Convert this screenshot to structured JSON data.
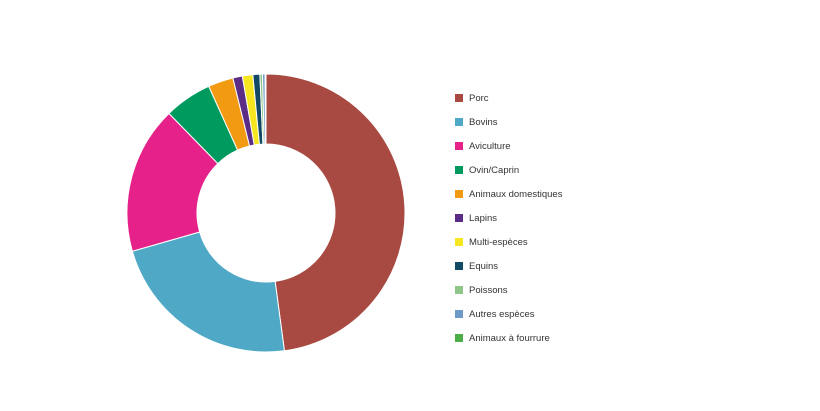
{
  "chart_data": {
    "type": "pie",
    "donut": true,
    "legend_position": "right",
    "series": [
      {
        "name": "Porc",
        "value": 47.5,
        "color": "#a84a42"
      },
      {
        "name": "Bovins",
        "value": 22.5,
        "color": "#4fa9c6"
      },
      {
        "name": "Aviculture",
        "value": 17.0,
        "color": "#e6218a"
      },
      {
        "name": "Ovin/Caprin",
        "value": 5.5,
        "color": "#009a5f"
      },
      {
        "name": "Animaux domestiques",
        "value": 2.9,
        "color": "#f29a12"
      },
      {
        "name": "Lapins",
        "value": 1.1,
        "color": "#5c2d86"
      },
      {
        "name": "Multi-espèces",
        "value": 1.2,
        "color": "#f6e620"
      },
      {
        "name": "Equins",
        "value": 0.8,
        "color": "#124a66"
      },
      {
        "name": "Poissons",
        "value": 0.3,
        "color": "#8fc68a"
      },
      {
        "name": "Autres espèces",
        "value": 0.3,
        "color": "#6d9ac9"
      },
      {
        "name": "Animaux à fourrure",
        "value": 0.1,
        "color": "#4bae47"
      }
    ]
  }
}
